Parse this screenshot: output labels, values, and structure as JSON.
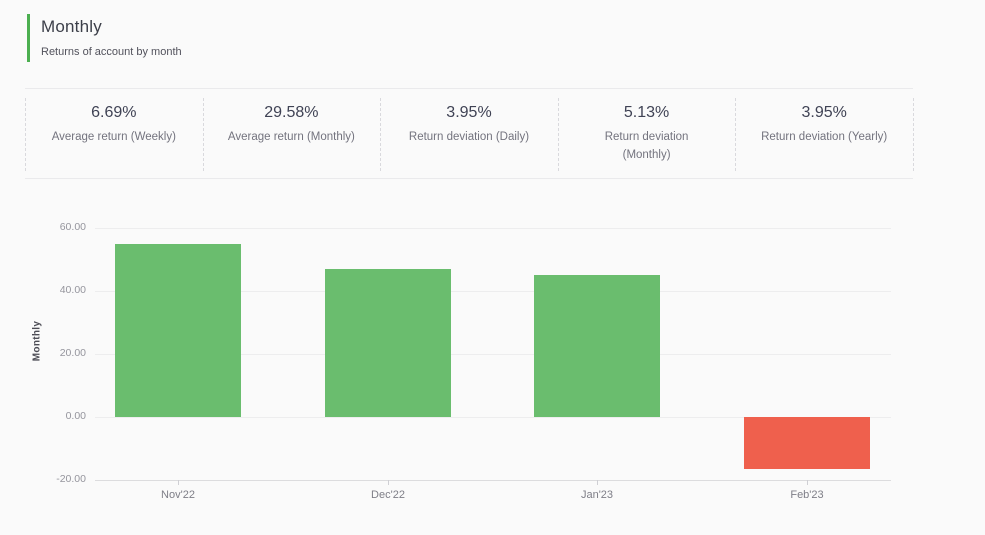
{
  "header": {
    "title": "Monthly",
    "subtitle": "Returns of account by month"
  },
  "stats": [
    {
      "value": "6.69%",
      "label": "Average return (Weekly)"
    },
    {
      "value": "29.58%",
      "label": "Average return (Monthly)"
    },
    {
      "value": "3.95%",
      "label": "Return deviation (Daily)"
    },
    {
      "value": "5.13%",
      "label": "Return deviation (Monthly)"
    },
    {
      "value": "3.95%",
      "label": "Return deviation (Yearly)"
    }
  ],
  "chart_data": {
    "type": "bar",
    "title": "",
    "categories": [
      "Nov'22",
      "Dec'22",
      "Jan'23",
      "Feb'23"
    ],
    "values": [
      54.9,
      47.0,
      45.2,
      -16.6
    ],
    "xlabel": "",
    "ylabel": "Monthly",
    "ylim": [
      -20,
      60
    ],
    "yticks": [
      60,
      40,
      20,
      0,
      -20
    ],
    "ytick_labels": [
      "60.00",
      "40.00",
      "20.00",
      "0.00",
      "-20.00"
    ],
    "grid": true,
    "legend": false,
    "positive_color": "#6abd6e",
    "negative_color": "#ef604d"
  },
  "colors": {
    "accent_green": "#4caf50",
    "positive_bar": "#6abd6e",
    "negative_bar": "#ef604d"
  }
}
